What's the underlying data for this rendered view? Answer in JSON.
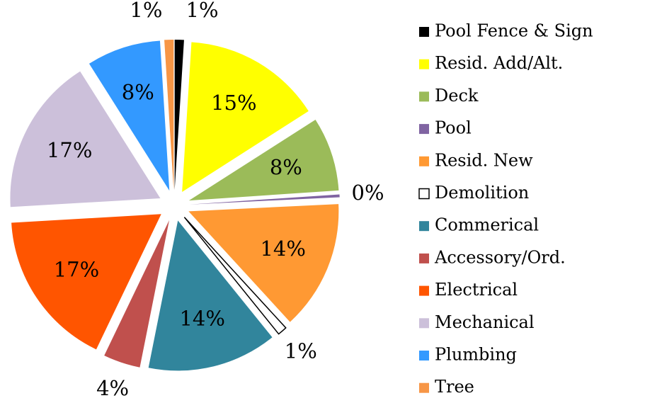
{
  "chart_data": {
    "type": "pie",
    "categories": [
      "Pool Fence & Sign",
      "Resid. Add/Alt.",
      "Deck",
      "Pool",
      "Resid. New",
      "Demolition",
      "Commerical",
      "Accessory/Ord.",
      "Electrical",
      "Mechanical",
      "Plumbing",
      "Tree"
    ],
    "values": [
      1,
      15,
      8,
      0.3,
      14,
      1,
      14,
      4,
      17,
      17,
      8,
      1
    ],
    "value_labels": [
      "1%",
      "15%",
      "8%",
      "0%",
      "14%",
      "1%",
      "14%",
      "4%",
      "17%",
      "17%",
      "8%",
      "1%"
    ],
    "colors": [
      "#000000",
      "#ffff00",
      "#9bbb59",
      "#8064a2",
      "#ff9933",
      "#ffffff",
      "#31859c",
      "#c0504d",
      "#ff5500",
      "#ccc0da",
      "#3399ff",
      "#f79646"
    ],
    "legend": "right"
  }
}
